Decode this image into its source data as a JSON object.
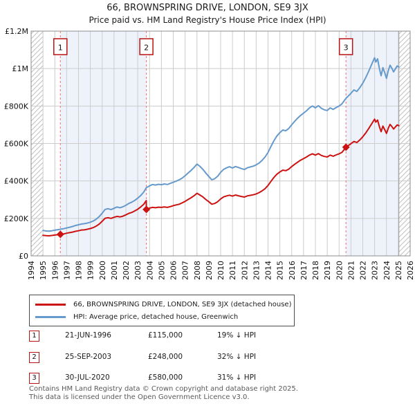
{
  "title": "66, BROWNSPRING DRIVE, LONDON, SE9 3JX",
  "subtitle": "Price paid vs. HM Land Registry's House Price Index (HPI)",
  "legend": {
    "series1": "66, BROWNSPRING DRIVE, LONDON, SE9 3JX (detached house)",
    "series2": "HPI: Average price, detached house, Greenwich"
  },
  "transactions": [
    {
      "num": "1",
      "date": "21-JUN-1996",
      "price": "£115,000",
      "hpi": "19% ↓ HPI"
    },
    {
      "num": "2",
      "date": "25-SEP-2003",
      "price": "£248,000",
      "hpi": "32% ↓ HPI"
    },
    {
      "num": "3",
      "date": "30-JUL-2020",
      "price": "£580,000",
      "hpi": "31% ↓ HPI"
    }
  ],
  "footer": {
    "line1": "Contains HM Land Registry data © Crown copyright and database right 2025.",
    "line2": "This data is licensed under the Open Government Licence v3.0."
  },
  "colors": {
    "price_line": "#cc1111",
    "hpi_line": "#6699cc",
    "sale_dash": "#f26d6d",
    "marker_box_border": "#bb1111",
    "shaded_band": "#eef3fb",
    "grid": "#cccccc",
    "frame": "#8c8c8c",
    "hatch": "#c0c0c0"
  },
  "chart_data": {
    "type": "line",
    "x_range": [
      1994,
      2026
    ],
    "y_range": [
      0,
      1200000
    ],
    "x_ticks": [
      1994,
      1995,
      1996,
      1997,
      1998,
      1999,
      2000,
      2001,
      2002,
      2003,
      2004,
      2005,
      2006,
      2007,
      2008,
      2009,
      2010,
      2011,
      2012,
      2013,
      2014,
      2015,
      2016,
      2017,
      2018,
      2019,
      2020,
      2021,
      2022,
      2023,
      2024,
      2025,
      2026
    ],
    "y_ticks": [
      {
        "value": 0,
        "label": "£0"
      },
      {
        "value": 200000,
        "label": "£200K"
      },
      {
        "value": 400000,
        "label": "£400K"
      },
      {
        "value": 600000,
        "label": "£600K"
      },
      {
        "value": 800000,
        "label": "£800K"
      },
      {
        "value": 1000000,
        "label": "£1M"
      },
      {
        "value": 1200000,
        "label": "£1.2M"
      }
    ],
    "shaded_regions": [
      [
        1996.47,
        2003.73
      ],
      [
        2020.58,
        2025.05
      ]
    ],
    "hatched_regions": [
      [
        1994,
        1995
      ],
      [
        2025.05,
        2026
      ]
    ],
    "sale_markers": [
      {
        "label": "1",
        "x": 1996.47,
        "y": 115000
      },
      {
        "label": "2",
        "x": 2003.73,
        "y": 248000
      },
      {
        "label": "3",
        "x": 2020.58,
        "y": 580000
      }
    ],
    "series": [
      {
        "key": "hpi",
        "name": "HPI: Average price, detached house, Greenwich",
        "color": "#6699cc",
        "x": [
          1995,
          1995.25,
          1995.5,
          1995.75,
          1996,
          1996.25,
          1996.47,
          1996.75,
          1997,
          1997.25,
          1997.5,
          1997.75,
          1998,
          1998.25,
          1998.5,
          1998.75,
          1999,
          1999.25,
          1999.5,
          1999.75,
          2000,
          2000.25,
          2000.5,
          2000.75,
          2001,
          2001.25,
          2001.5,
          2001.75,
          2002,
          2002.25,
          2002.5,
          2002.75,
          2003,
          2003.25,
          2003.5,
          2003.73,
          2004,
          2004.25,
          2004.5,
          2004.75,
          2005,
          2005.25,
          2005.5,
          2005.75,
          2006,
          2006.25,
          2006.5,
          2006.75,
          2007,
          2007.25,
          2007.5,
          2007.75,
          2008,
          2008.25,
          2008.5,
          2008.75,
          2009,
          2009.25,
          2009.5,
          2009.75,
          2010,
          2010.25,
          2010.5,
          2010.75,
          2011,
          2011.25,
          2011.5,
          2011.75,
          2012,
          2012.25,
          2012.5,
          2012.75,
          2013,
          2013.25,
          2013.5,
          2013.75,
          2014,
          2014.25,
          2014.5,
          2014.75,
          2015,
          2015.25,
          2015.5,
          2015.75,
          2016,
          2016.25,
          2016.5,
          2016.75,
          2017,
          2017.25,
          2017.5,
          2017.75,
          2018,
          2018.25,
          2018.5,
          2018.75,
          2019,
          2019.25,
          2019.5,
          2019.75,
          2020,
          2020.25,
          2020.58,
          2020.75,
          2021,
          2021.25,
          2021.5,
          2021.75,
          2022,
          2022.25,
          2022.5,
          2022.75,
          2023,
          2023.1,
          2023.25,
          2023.4,
          2023.55,
          2023.7,
          2023.85,
          2024,
          2024.15,
          2024.3,
          2024.45,
          2024.6,
          2024.75,
          2024.9,
          2025.05
        ],
        "y": [
          136000,
          133000,
          132000,
          134000,
          137000,
          140000,
          142000,
          145000,
          149000,
          153000,
          157000,
          162000,
          166000,
          170000,
          172000,
          175000,
          180000,
          186000,
          196000,
          210000,
          228000,
          248000,
          252000,
          247000,
          254000,
          261000,
          257000,
          262000,
          270000,
          280000,
          287000,
          296000,
          308000,
          322000,
          340000,
          364000,
          374000,
          381000,
          378000,
          382000,
          380000,
          384000,
          381000,
          387000,
          393000,
          399000,
          406000,
          415000,
          428000,
          442000,
          456000,
          472000,
          490000,
          478000,
          462000,
          442000,
          424000,
          406000,
          412000,
          425000,
          446000,
          462000,
          470000,
          476000,
          469000,
          477000,
          472000,
          466000,
          461000,
          470000,
          475000,
          479000,
          486000,
          496000,
          510000,
          528000,
          552000,
          585000,
          615000,
          640000,
          658000,
          672000,
          668000,
          680000,
          700000,
          718000,
          735000,
          750000,
          762000,
          775000,
          790000,
          800000,
          790000,
          802000,
          788000,
          780000,
          776000,
          790000,
          782000,
          792000,
          800000,
          812000,
          841000,
          852000,
          868000,
          886000,
          878000,
          898000,
          922000,
          952000,
          986000,
          1022000,
          1058000,
          1035000,
          1052000,
          1000000,
          962000,
          1005000,
          978000,
          948000,
          988000,
          1018000,
          1002000,
          982000,
          998000,
          1014000,
          1008000
        ]
      },
      {
        "key": "price_paid",
        "name": "66, BROWNSPRING DRIVE, LONDON, SE9 3JX (detached house)",
        "color": "#cc1111",
        "x": [
          1995,
          1995.25,
          1995.5,
          1995.75,
          1996,
          1996.25,
          1996.47,
          1996.75,
          1997,
          1997.25,
          1997.5,
          1997.75,
          1998,
          1998.25,
          1998.5,
          1998.75,
          1999,
          1999.25,
          1999.5,
          1999.75,
          2000,
          2000.25,
          2000.5,
          2000.75,
          2001,
          2001.25,
          2001.5,
          2001.75,
          2002,
          2002.25,
          2002.5,
          2002.75,
          2003,
          2003.25,
          2003.5,
          2003.72,
          2003.73,
          2004,
          2004.25,
          2004.5,
          2004.75,
          2005,
          2005.25,
          2005.5,
          2005.75,
          2006,
          2006.25,
          2006.5,
          2006.75,
          2007,
          2007.25,
          2007.5,
          2007.75,
          2008,
          2008.25,
          2008.5,
          2008.75,
          2009,
          2009.25,
          2009.5,
          2009.75,
          2010,
          2010.25,
          2010.5,
          2010.75,
          2011,
          2011.25,
          2011.5,
          2011.75,
          2012,
          2012.25,
          2012.5,
          2012.75,
          2013,
          2013.25,
          2013.5,
          2013.75,
          2014,
          2014.25,
          2014.5,
          2014.75,
          2015,
          2015.25,
          2015.5,
          2015.75,
          2016,
          2016.25,
          2016.5,
          2016.75,
          2017,
          2017.25,
          2017.5,
          2017.75,
          2018,
          2018.25,
          2018.5,
          2018.75,
          2019,
          2019.25,
          2019.5,
          2019.75,
          2020,
          2020.25,
          2020.58,
          2020.75,
          2021,
          2021.25,
          2021.5,
          2021.75,
          2022,
          2022.25,
          2022.5,
          2022.75,
          2023,
          2023.1,
          2023.25,
          2023.4,
          2023.55,
          2023.7,
          2023.85,
          2024,
          2024.15,
          2024.3,
          2024.45,
          2024.6,
          2024.75,
          2024.9,
          2025.05
        ],
        "y": [
          110000,
          108000,
          107000,
          109000,
          111000,
          113000,
          115000,
          117000,
          121000,
          124000,
          127000,
          131000,
          134000,
          138000,
          139000,
          142000,
          146000,
          151000,
          159000,
          170000,
          185000,
          201000,
          204000,
          200000,
          206000,
          211000,
          208000,
          212000,
          219000,
          227000,
          232000,
          240000,
          249000,
          261000,
          275000,
          295000,
          248000,
          255000,
          259000,
          257000,
          260000,
          259000,
          261000,
          259000,
          263000,
          268000,
          272000,
          276000,
          283000,
          291000,
          301000,
          310000,
          321000,
          334000,
          325000,
          315000,
          301000,
          289000,
          276000,
          280000,
          289000,
          304000,
          315000,
          320000,
          324000,
          319000,
          325000,
          321000,
          317000,
          314000,
          320000,
          323000,
          326000,
          331000,
          338000,
          347000,
          359000,
          376000,
          398000,
          419000,
          436000,
          448000,
          458000,
          455000,
          463000,
          477000,
          489000,
          500000,
          511000,
          519000,
          528000,
          538000,
          545000,
          538000,
          546000,
          536000,
          531000,
          528000,
          538000,
          532000,
          539000,
          545000,
          553000,
          580000,
          588000,
          599000,
          611000,
          605000,
          619000,
          636000,
          656000,
          680000,
          705000,
          730000,
          714000,
          725000,
          690000,
          663000,
          693000,
          674000,
          654000,
          681000,
          702000,
          691000,
          677000,
          688000,
          699000,
          695000
        ]
      }
    ]
  }
}
